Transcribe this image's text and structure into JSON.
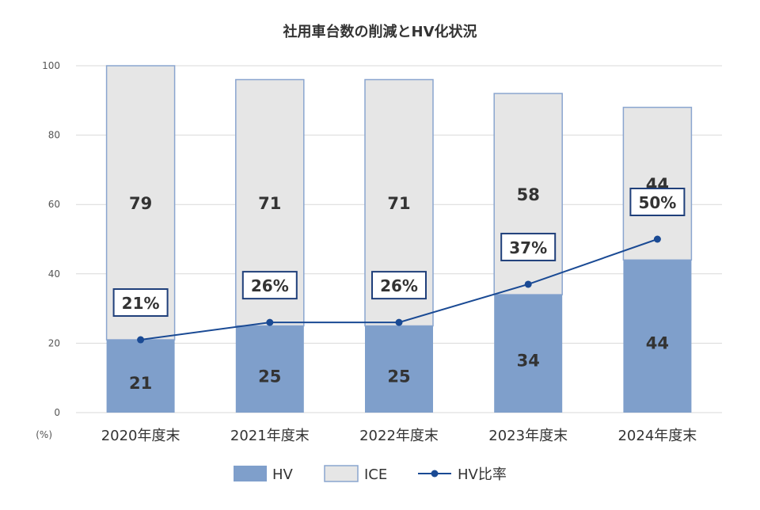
{
  "chart_data": {
    "type": "bar",
    "stacked": true,
    "title": "社用車台数の削減とHV化状況",
    "y_unit_label": "(%)",
    "ylim": [
      0,
      100
    ],
    "yticks": [
      0,
      20,
      40,
      60,
      80,
      100
    ],
    "grid": true,
    "legend_position": "bottom",
    "categories": [
      "2020年度末",
      "2021年度末",
      "2022年度末",
      "2023年度末",
      "2024年度末"
    ],
    "series": [
      {
        "name": "HV",
        "type": "bar",
        "values": [
          21,
          25,
          25,
          34,
          44
        ],
        "labels": [
          "21",
          "25",
          "25",
          "34",
          "44"
        ]
      },
      {
        "name": "ICE",
        "type": "bar",
        "values": [
          79,
          71,
          71,
          58,
          44
        ],
        "labels": [
          "79",
          "71",
          "71",
          "58",
          "44"
        ]
      },
      {
        "name": "HV比率",
        "type": "line",
        "values": [
          21,
          26,
          26,
          37,
          50
        ],
        "labels": [
          "21%",
          "26%",
          "26%",
          "37%",
          "50%"
        ]
      }
    ],
    "colors": {
      "hv_fill": "#7f9fcb",
      "ice_fill": "#e6e6e6",
      "ice_border": "#8aa5cf",
      "line": "#1a4a94",
      "label_box_border": "#1f3f7a",
      "grid": "#d9d9d9",
      "text": "#333333"
    }
  }
}
